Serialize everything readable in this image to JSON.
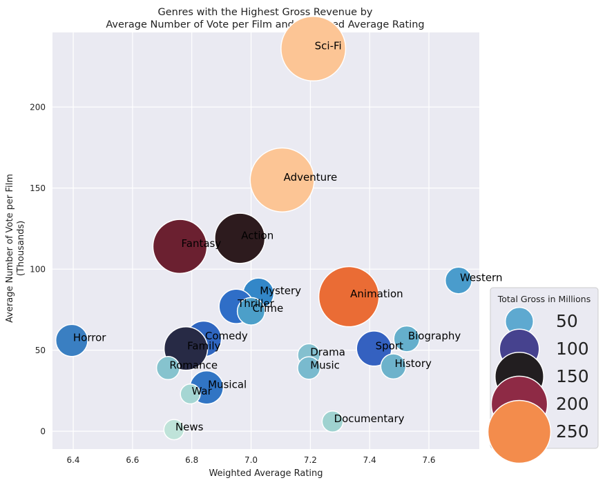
{
  "chart_data": {
    "type": "scatter",
    "title": "Genres with the Highest Gross Revenue by\nAverage Number of Vote per Film and Weighted Average Rating",
    "xlabel": "Weighted Average Rating",
    "ylabel": "Average Number of Vote per Film\n(Thousands)",
    "xlim": [
      6.33,
      7.77
    ],
    "ylim": [
      -11,
      246
    ],
    "x_ticks": [
      6.4,
      6.6,
      6.8,
      7.0,
      7.2,
      7.4,
      7.6
    ],
    "x_tick_labels": [
      "6.4",
      "6.6",
      "6.8",
      "7.0",
      "7.2",
      "7.4",
      "7.6"
    ],
    "y_ticks": [
      0,
      50,
      100,
      150,
      200
    ],
    "y_tick_labels": [
      "0",
      "50",
      "100",
      "150",
      "200"
    ],
    "grid": true,
    "legend": {
      "title": "Total Gross in Millions",
      "placement": "lower-right-outside",
      "entries": [
        {
          "label": "50",
          "value": 50,
          "color": "#5ea9d0"
        },
        {
          "label": "100",
          "value": 100,
          "color": "#46428e"
        },
        {
          "label": "150",
          "value": 150,
          "color": "#221e20"
        },
        {
          "label": "200",
          "value": 200,
          "color": "#8e2a45"
        },
        {
          "label": "250",
          "value": 250,
          "color": "#f38c4c"
        }
      ]
    },
    "points": [
      {
        "label": "Sci-Fi",
        "x": 7.21,
        "y": 236,
        "gross": 265,
        "color": "#fcc595"
      },
      {
        "label": "Adventure",
        "x": 7.105,
        "y": 155,
        "gross": 260,
        "color": "#fcc595"
      },
      {
        "label": "Action",
        "x": 6.962,
        "y": 119,
        "gross": 160,
        "color": "#2d1b1e"
      },
      {
        "label": "Fantasy",
        "x": 6.76,
        "y": 114,
        "gross": 185,
        "color": "#6b2030"
      },
      {
        "label": "Western",
        "x": 7.7,
        "y": 93,
        "gross": 45,
        "color": "#4a9ccc"
      },
      {
        "label": "Animation",
        "x": 7.33,
        "y": 83,
        "gross": 230,
        "color": "#ea6c35"
      },
      {
        "label": "Mystery",
        "x": 7.025,
        "y": 85,
        "gross": 60,
        "color": "#3387c8"
      },
      {
        "label": "Thriller",
        "x": 6.95,
        "y": 77,
        "gross": 75,
        "color": "#2f6ec7"
      },
      {
        "label": "Crime",
        "x": 7.0,
        "y": 74,
        "gross": 48,
        "color": "#4c9fc9"
      },
      {
        "label": "Horror",
        "x": 6.395,
        "y": 56,
        "gross": 65,
        "color": "#3a7fc2"
      },
      {
        "label": "Comedy",
        "x": 6.84,
        "y": 57,
        "gross": 80,
        "color": "#2f66c0"
      },
      {
        "label": "Family",
        "x": 6.78,
        "y": 51,
        "gross": 120,
        "color": "#272a45"
      },
      {
        "label": "Biography",
        "x": 7.525,
        "y": 57,
        "gross": 42,
        "color": "#65afcc"
      },
      {
        "label": "Sport",
        "x": 7.415,
        "y": 51,
        "gross": 78,
        "color": "#3461c0"
      },
      {
        "label": "Drama",
        "x": 7.195,
        "y": 47,
        "gross": 32,
        "color": "#84c0cf"
      },
      {
        "label": "History",
        "x": 7.48,
        "y": 40,
        "gross": 40,
        "color": "#6db2cb"
      },
      {
        "label": "Romance",
        "x": 6.72,
        "y": 39,
        "gross": 34,
        "color": "#86c3ce"
      },
      {
        "label": "Music",
        "x": 7.195,
        "y": 39,
        "gross": 32,
        "color": "#79bace"
      },
      {
        "label": "Musical",
        "x": 6.85,
        "y": 27,
        "gross": 70,
        "color": "#3175c4"
      },
      {
        "label": "War",
        "x": 6.795,
        "y": 23,
        "gross": 25,
        "color": "#a5d6d3"
      },
      {
        "label": "Documentary",
        "x": 7.275,
        "y": 6,
        "gross": 28,
        "color": "#9fd2d0"
      },
      {
        "label": "News",
        "x": 6.74,
        "y": 1,
        "gross": 26,
        "color": "#bfe3d9"
      }
    ]
  }
}
